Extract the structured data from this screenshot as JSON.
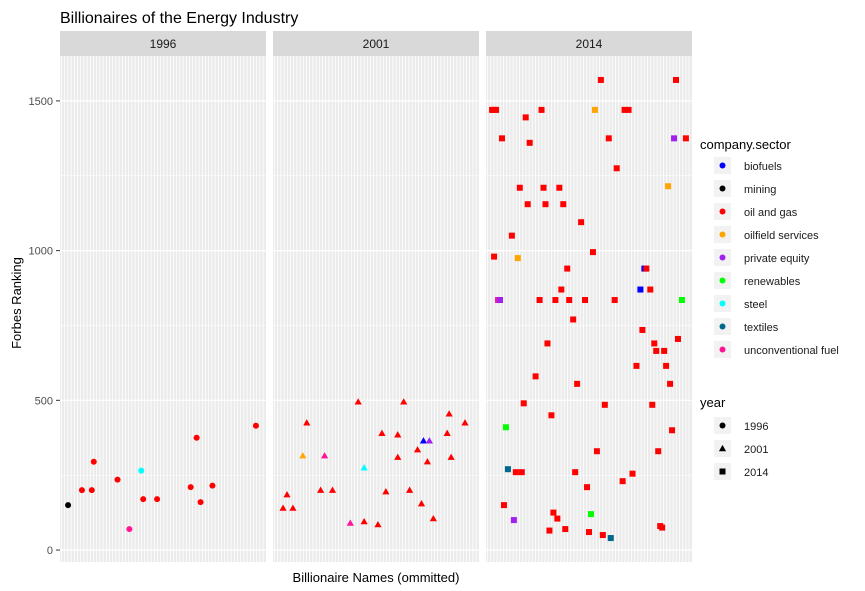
{
  "chart_data": {
    "type": "scatter",
    "title": "Billionaires of the Energy Industry",
    "xlabel": "Billionaire Names (ommitted)",
    "ylabel": "Forbes Ranking",
    "ylim": [
      -40,
      1650
    ],
    "yticks": [
      0,
      500,
      1000,
      1500
    ],
    "grid": true,
    "facets": [
      "1996",
      "2001",
      "2014"
    ],
    "legend_color": {
      "title": "company.sector",
      "items": [
        {
          "label": "biofuels",
          "color": "#0000ff"
        },
        {
          "label": "mining",
          "color": "#000000"
        },
        {
          "label": "oil and gas",
          "color": "#ff0000"
        },
        {
          "label": "oilfield services",
          "color": "#ffa500"
        },
        {
          "label": "private equity",
          "color": "#a020f0"
        },
        {
          "label": "renewables",
          "color": "#00ff00"
        },
        {
          "label": "steel",
          "color": "#00ffff"
        },
        {
          "label": "textiles",
          "color": "#00688b"
        },
        {
          "label": "unconventional fuel",
          "color": "#ff1493"
        }
      ]
    },
    "legend_shape": {
      "title": "year",
      "items": [
        {
          "label": "1996",
          "shape": "circle"
        },
        {
          "label": "2001",
          "shape": "triangle"
        },
        {
          "label": "2014",
          "shape": "square"
        }
      ]
    },
    "legend_placement": "right",
    "x_unit": "billionaire index (names omitted)",
    "points": [
      {
        "facet": "1996",
        "x": 0.02,
        "y": 150,
        "sector": "mining"
      },
      {
        "facet": "1996",
        "x": 0.09,
        "y": 200,
        "sector": "oil and gas"
      },
      {
        "facet": "1996",
        "x": 0.14,
        "y": 200,
        "sector": "oil and gas"
      },
      {
        "facet": "1996",
        "x": 0.15,
        "y": 295,
        "sector": "oil and gas"
      },
      {
        "facet": "1996",
        "x": 0.27,
        "y": 235,
        "sector": "oil and gas"
      },
      {
        "facet": "1996",
        "x": 0.33,
        "y": 70,
        "sector": "unconventional fuel"
      },
      {
        "facet": "1996",
        "x": 0.39,
        "y": 265,
        "sector": "steel"
      },
      {
        "facet": "1996",
        "x": 0.4,
        "y": 170,
        "sector": "oil and gas"
      },
      {
        "facet": "1996",
        "x": 0.47,
        "y": 170,
        "sector": "oil and gas"
      },
      {
        "facet": "1996",
        "x": 0.64,
        "y": 210,
        "sector": "oil and gas"
      },
      {
        "facet": "1996",
        "x": 0.67,
        "y": 375,
        "sector": "oil and gas"
      },
      {
        "facet": "1996",
        "x": 0.69,
        "y": 160,
        "sector": "oil and gas"
      },
      {
        "facet": "1996",
        "x": 0.75,
        "y": 215,
        "sector": "oil and gas"
      },
      {
        "facet": "1996",
        "x": 0.97,
        "y": 415,
        "sector": "oil and gas"
      },
      {
        "facet": "2001",
        "x": 0.03,
        "y": 140,
        "sector": "oil and gas"
      },
      {
        "facet": "2001",
        "x": 0.05,
        "y": 185,
        "sector": "oil and gas"
      },
      {
        "facet": "2001",
        "x": 0.08,
        "y": 140,
        "sector": "oil and gas"
      },
      {
        "facet": "2001",
        "x": 0.13,
        "y": 315,
        "sector": "oilfield services"
      },
      {
        "facet": "2001",
        "x": 0.15,
        "y": 425,
        "sector": "oil and gas"
      },
      {
        "facet": "2001",
        "x": 0.22,
        "y": 200,
        "sector": "oil and gas"
      },
      {
        "facet": "2001",
        "x": 0.24,
        "y": 315,
        "sector": "unconventional fuel"
      },
      {
        "facet": "2001",
        "x": 0.28,
        "y": 200,
        "sector": "oil and gas"
      },
      {
        "facet": "2001",
        "x": 0.37,
        "y": 90,
        "sector": "unconventional fuel"
      },
      {
        "facet": "2001",
        "x": 0.41,
        "y": 495,
        "sector": "oil and gas"
      },
      {
        "facet": "2001",
        "x": 0.44,
        "y": 275,
        "sector": "steel"
      },
      {
        "facet": "2001",
        "x": 0.44,
        "y": 95,
        "sector": "oil and gas"
      },
      {
        "facet": "2001",
        "x": 0.51,
        "y": 85,
        "sector": "oil and gas"
      },
      {
        "facet": "2001",
        "x": 0.53,
        "y": 390,
        "sector": "oil and gas"
      },
      {
        "facet": "2001",
        "x": 0.55,
        "y": 195,
        "sector": "oil and gas"
      },
      {
        "facet": "2001",
        "x": 0.61,
        "y": 385,
        "sector": "oil and gas"
      },
      {
        "facet": "2001",
        "x": 0.61,
        "y": 310,
        "sector": "oil and gas"
      },
      {
        "facet": "2001",
        "x": 0.64,
        "y": 495,
        "sector": "oil and gas"
      },
      {
        "facet": "2001",
        "x": 0.67,
        "y": 200,
        "sector": "oil and gas"
      },
      {
        "facet": "2001",
        "x": 0.71,
        "y": 335,
        "sector": "oil and gas"
      },
      {
        "facet": "2001",
        "x": 0.73,
        "y": 155,
        "sector": "oil and gas"
      },
      {
        "facet": "2001",
        "x": 0.74,
        "y": 365,
        "sector": "biofuels"
      },
      {
        "facet": "2001",
        "x": 0.76,
        "y": 295,
        "sector": "oil and gas"
      },
      {
        "facet": "2001",
        "x": 0.77,
        "y": 365,
        "sector": "private equity"
      },
      {
        "facet": "2001",
        "x": 0.79,
        "y": 105,
        "sector": "oil and gas"
      },
      {
        "facet": "2001",
        "x": 0.86,
        "y": 390,
        "sector": "oil and gas"
      },
      {
        "facet": "2001",
        "x": 0.87,
        "y": 455,
        "sector": "oil and gas"
      },
      {
        "facet": "2001",
        "x": 0.88,
        "y": 310,
        "sector": "oil and gas"
      },
      {
        "facet": "2001",
        "x": 0.95,
        "y": 425,
        "sector": "oil and gas"
      },
      {
        "facet": "2014",
        "x": 0.01,
        "y": 1470,
        "sector": "oil and gas"
      },
      {
        "facet": "2014",
        "x": 0.02,
        "y": 1470,
        "sector": "oil and gas"
      },
      {
        "facet": "2014",
        "x": 0.02,
        "y": 980,
        "sector": "oil and gas"
      },
      {
        "facet": "2014",
        "x": 0.03,
        "y": 1470,
        "sector": "oil and gas"
      },
      {
        "facet": "2014",
        "x": 0.04,
        "y": 835,
        "sector": "unconventional fuel"
      },
      {
        "facet": "2014",
        "x": 0.05,
        "y": 835,
        "sector": "private equity"
      },
      {
        "facet": "2014",
        "x": 0.06,
        "y": 1375,
        "sector": "oil and gas"
      },
      {
        "facet": "2014",
        "x": 0.07,
        "y": 150,
        "sector": "oil and gas"
      },
      {
        "facet": "2014",
        "x": 0.08,
        "y": 410,
        "sector": "renewables"
      },
      {
        "facet": "2014",
        "x": 0.09,
        "y": 270,
        "sector": "textiles"
      },
      {
        "facet": "2014",
        "x": 0.11,
        "y": 1050,
        "sector": "oil and gas"
      },
      {
        "facet": "2014",
        "x": 0.12,
        "y": 100,
        "sector": "private equity"
      },
      {
        "facet": "2014",
        "x": 0.13,
        "y": 260,
        "sector": "oil and gas"
      },
      {
        "facet": "2014",
        "x": 0.14,
        "y": 975,
        "sector": "oilfield services"
      },
      {
        "facet": "2014",
        "x": 0.15,
        "y": 1210,
        "sector": "oil and gas"
      },
      {
        "facet": "2014",
        "x": 0.16,
        "y": 260,
        "sector": "oil and gas"
      },
      {
        "facet": "2014",
        "x": 0.17,
        "y": 490,
        "sector": "oil and gas"
      },
      {
        "facet": "2014",
        "x": 0.18,
        "y": 1445,
        "sector": "oil and gas"
      },
      {
        "facet": "2014",
        "x": 0.19,
        "y": 1155,
        "sector": "oil and gas"
      },
      {
        "facet": "2014",
        "x": 0.2,
        "y": 1360,
        "sector": "oil and gas"
      },
      {
        "facet": "2014",
        "x": 0.23,
        "y": 580,
        "sector": "oil and gas"
      },
      {
        "facet": "2014",
        "x": 0.25,
        "y": 835,
        "sector": "oil and gas"
      },
      {
        "facet": "2014",
        "x": 0.26,
        "y": 1470,
        "sector": "oil and gas"
      },
      {
        "facet": "2014",
        "x": 0.27,
        "y": 1210,
        "sector": "oil and gas"
      },
      {
        "facet": "2014",
        "x": 0.28,
        "y": 1155,
        "sector": "oil and gas"
      },
      {
        "facet": "2014",
        "x": 0.29,
        "y": 690,
        "sector": "oil and gas"
      },
      {
        "facet": "2014",
        "x": 0.3,
        "y": 65,
        "sector": "oil and gas"
      },
      {
        "facet": "2014",
        "x": 0.31,
        "y": 450,
        "sector": "oil and gas"
      },
      {
        "facet": "2014",
        "x": 0.32,
        "y": 125,
        "sector": "oil and gas"
      },
      {
        "facet": "2014",
        "x": 0.33,
        "y": 835,
        "sector": "oil and gas"
      },
      {
        "facet": "2014",
        "x": 0.34,
        "y": 105,
        "sector": "oil and gas"
      },
      {
        "facet": "2014",
        "x": 0.35,
        "y": 1210,
        "sector": "oil and gas"
      },
      {
        "facet": "2014",
        "x": 0.36,
        "y": 870,
        "sector": "oil and gas"
      },
      {
        "facet": "2014",
        "x": 0.37,
        "y": 1155,
        "sector": "oil and gas"
      },
      {
        "facet": "2014",
        "x": 0.38,
        "y": 70,
        "sector": "oil and gas"
      },
      {
        "facet": "2014",
        "x": 0.39,
        "y": 940,
        "sector": "oil and gas"
      },
      {
        "facet": "2014",
        "x": 0.4,
        "y": 835,
        "sector": "oil and gas"
      },
      {
        "facet": "2014",
        "x": 0.42,
        "y": 770,
        "sector": "oil and gas"
      },
      {
        "facet": "2014",
        "x": 0.43,
        "y": 260,
        "sector": "oil and gas"
      },
      {
        "facet": "2014",
        "x": 0.44,
        "y": 555,
        "sector": "oil and gas"
      },
      {
        "facet": "2014",
        "x": 0.46,
        "y": 1095,
        "sector": "oil and gas"
      },
      {
        "facet": "2014",
        "x": 0.48,
        "y": 835,
        "sector": "oil and gas"
      },
      {
        "facet": "2014",
        "x": 0.49,
        "y": 210,
        "sector": "oil and gas"
      },
      {
        "facet": "2014",
        "x": 0.5,
        "y": 60,
        "sector": "oil and gas"
      },
      {
        "facet": "2014",
        "x": 0.51,
        "y": 120,
        "sector": "renewables"
      },
      {
        "facet": "2014",
        "x": 0.52,
        "y": 995,
        "sector": "oil and gas"
      },
      {
        "facet": "2014",
        "x": 0.53,
        "y": 1470,
        "sector": "oilfield services"
      },
      {
        "facet": "2014",
        "x": 0.54,
        "y": 330,
        "sector": "oil and gas"
      },
      {
        "facet": "2014",
        "x": 0.56,
        "y": 1570,
        "sector": "oil and gas"
      },
      {
        "facet": "2014",
        "x": 0.57,
        "y": 50,
        "sector": "oil and gas"
      },
      {
        "facet": "2014",
        "x": 0.58,
        "y": 485,
        "sector": "oil and gas"
      },
      {
        "facet": "2014",
        "x": 0.6,
        "y": 1375,
        "sector": "oil and gas"
      },
      {
        "facet": "2014",
        "x": 0.61,
        "y": 40,
        "sector": "textiles"
      },
      {
        "facet": "2014",
        "x": 0.63,
        "y": 835,
        "sector": "oil and gas"
      },
      {
        "facet": "2014",
        "x": 0.64,
        "y": 1275,
        "sector": "oil and gas"
      },
      {
        "facet": "2014",
        "x": 0.67,
        "y": 230,
        "sector": "oil and gas"
      },
      {
        "facet": "2014",
        "x": 0.68,
        "y": 1470,
        "sector": "oil and gas"
      },
      {
        "facet": "2014",
        "x": 0.7,
        "y": 1470,
        "sector": "oil and gas"
      },
      {
        "facet": "2014",
        "x": 0.72,
        "y": 255,
        "sector": "oil and gas"
      },
      {
        "facet": "2014",
        "x": 0.74,
        "y": 615,
        "sector": "oil and gas"
      },
      {
        "facet": "2014",
        "x": 0.76,
        "y": 870,
        "sector": "biofuels"
      },
      {
        "facet": "2014",
        "x": 0.77,
        "y": 735,
        "sector": "oil and gas"
      },
      {
        "facet": "2014",
        "x": 0.78,
        "y": 940,
        "sector": "biofuels"
      },
      {
        "facet": "2014",
        "x": 0.79,
        "y": 940,
        "sector": "oil and gas"
      },
      {
        "facet": "2014",
        "x": 0.81,
        "y": 870,
        "sector": "oil and gas"
      },
      {
        "facet": "2014",
        "x": 0.82,
        "y": 485,
        "sector": "oil and gas"
      },
      {
        "facet": "2014",
        "x": 0.83,
        "y": 690,
        "sector": "oil and gas"
      },
      {
        "facet": "2014",
        "x": 0.84,
        "y": 665,
        "sector": "oil and gas"
      },
      {
        "facet": "2014",
        "x": 0.85,
        "y": 330,
        "sector": "oil and gas"
      },
      {
        "facet": "2014",
        "x": 0.86,
        "y": 80,
        "sector": "oil and gas"
      },
      {
        "facet": "2014",
        "x": 0.87,
        "y": 75,
        "sector": "oil and gas"
      },
      {
        "facet": "2014",
        "x": 0.88,
        "y": 665,
        "sector": "oil and gas"
      },
      {
        "facet": "2014",
        "x": 0.89,
        "y": 615,
        "sector": "oil and gas"
      },
      {
        "facet": "2014",
        "x": 0.9,
        "y": 1215,
        "sector": "oilfield services"
      },
      {
        "facet": "2014",
        "x": 0.91,
        "y": 555,
        "sector": "oil and gas"
      },
      {
        "facet": "2014",
        "x": 0.92,
        "y": 400,
        "sector": "oil and gas"
      },
      {
        "facet": "2014",
        "x": 0.93,
        "y": 1375,
        "sector": "private equity"
      },
      {
        "facet": "2014",
        "x": 0.94,
        "y": 1570,
        "sector": "oil and gas"
      },
      {
        "facet": "2014",
        "x": 0.95,
        "y": 705,
        "sector": "oil and gas"
      },
      {
        "facet": "2014",
        "x": 0.97,
        "y": 835,
        "sector": "renewables"
      },
      {
        "facet": "2014",
        "x": 0.99,
        "y": 1375,
        "sector": "oil and gas"
      }
    ]
  }
}
